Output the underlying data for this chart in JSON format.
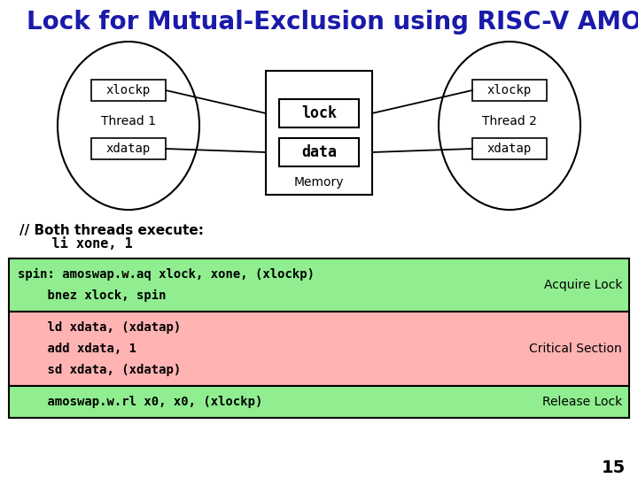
{
  "title": "Lock for Mutual-Exclusion using RISC-V AMO",
  "title_color": "#1a1aaa",
  "title_fontsize": 20,
  "background_color": "#ffffff",
  "thread1_label": "Thread 1",
  "thread2_label": "Thread 2",
  "xlockp_label": "xlockp",
  "xdatap_label": "xdatap",
  "lock_label": "lock",
  "data_label": "data",
  "memory_label": "Memory",
  "comment_line1": "// Both threads execute:",
  "comment_line2": "    li xone, 1",
  "sections": [
    {
      "lines": [
        "spin: amoswap.w.aq xlock, xone, (xlockp)",
        "    bnez xlock, spin"
      ],
      "label": "Acquire Lock",
      "bg": "#90ee90"
    },
    {
      "lines": [
        "    ld xdata, (xdatap)",
        "    add xdata, 1",
        "    sd xdata, (xdatap)"
      ],
      "label": "Critical Section",
      "bg": "#ffb3b3"
    },
    {
      "lines": [
        "    amoswap.w.rl x0, x0, (xlockp)"
      ],
      "label": "Release Lock",
      "bg": "#90ee90"
    }
  ],
  "page_number": "15"
}
